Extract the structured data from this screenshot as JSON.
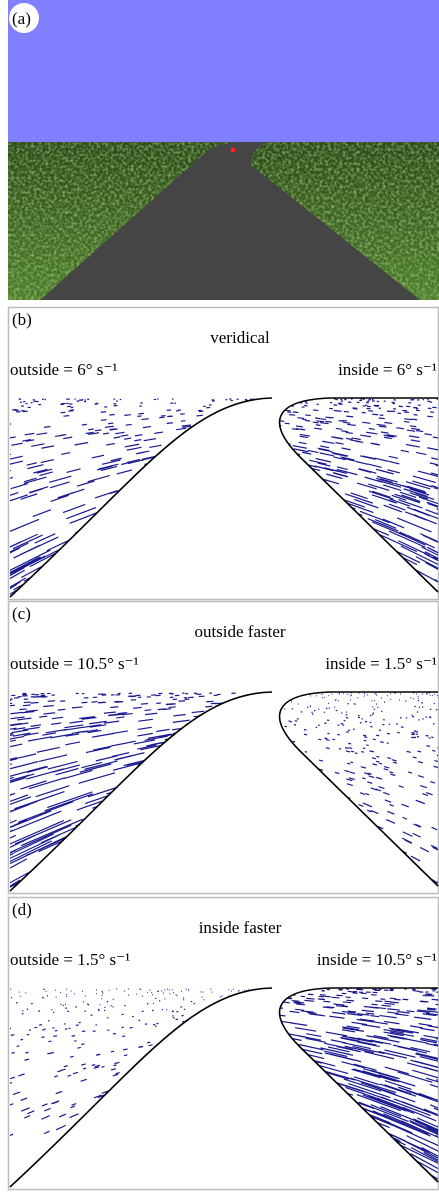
{
  "panels": [
    {
      "label": "(a)"
    },
    {
      "label": "(b)",
      "title": "veridical",
      "outside": "outside = 6° s⁻¹",
      "inside": "inside = 6° s⁻¹"
    },
    {
      "label": "(c)",
      "title": "outside faster",
      "outside": "outside = 10.5° s⁻¹",
      "inside": "inside = 1.5° s⁻¹"
    },
    {
      "label": "(d)",
      "title": "inside faster",
      "outside": "outside = 1.5° s⁻¹",
      "inside": "inside = 10.5° s⁻¹"
    }
  ]
}
